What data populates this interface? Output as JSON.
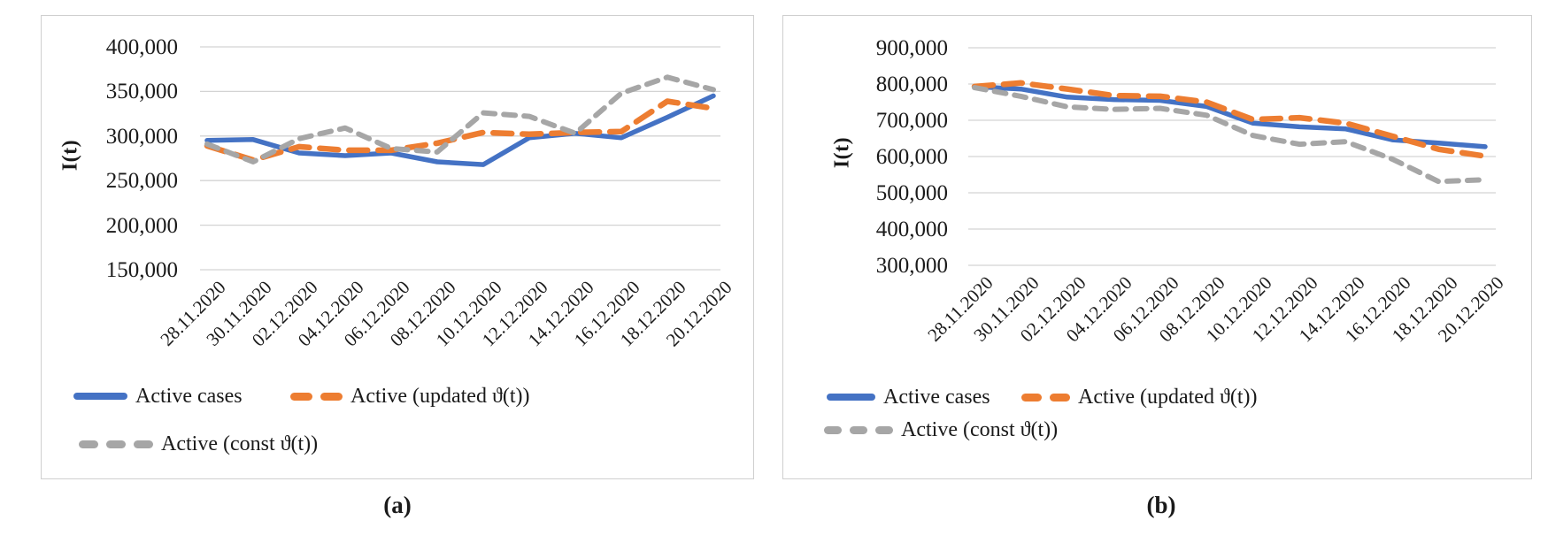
{
  "figure": {
    "captions": {
      "a": "(a)",
      "b": "(b)"
    }
  },
  "colors": {
    "active_cases": "#4472C4",
    "active_updated": "#ED7D31",
    "active_const": "#A6A6A6",
    "gridline": "#d3d3d3"
  },
  "chart_data": [
    {
      "id": "a",
      "type": "line",
      "title": "",
      "ylabel": "I(t)",
      "xlabel": "",
      "ylim": [
        150000,
        400000
      ],
      "ytick_step": 50000,
      "ytick_labels": [
        "400,000",
        "350,000",
        "300,000",
        "250,000",
        "200,000",
        "150,000"
      ],
      "grid": true,
      "legend_position": "bottom",
      "categories": [
        "28.11.2020",
        "30.11.2020",
        "02.12.2020",
        "04.12.2020",
        "06.12.2020",
        "08.12.2020",
        "10.12.2020",
        "12.12.2020",
        "14.12.2020",
        "16.12.2020",
        "18.12.2020",
        "20.12.2020"
      ],
      "series": [
        {
          "name": "Active cases",
          "color": "#4472C4",
          "dash": "solid",
          "values": [
            295000,
            296000,
            281000,
            278000,
            281000,
            271000,
            268000,
            298000,
            303000,
            298000,
            321000,
            345000
          ]
        },
        {
          "name": "Active (updated ϑ(t))",
          "color": "#ED7D31",
          "dash": "long",
          "values": [
            289000,
            273000,
            288000,
            284000,
            284000,
            292000,
            304000,
            302000,
            304000,
            305000,
            339000,
            331000
          ]
        },
        {
          "name": "Active (const ϑ(t))",
          "color": "#A6A6A6",
          "dash": "short",
          "values": [
            291000,
            271000,
            297000,
            309000,
            286000,
            282000,
            326000,
            322000,
            303000,
            348000,
            366000,
            352000
          ]
        }
      ]
    },
    {
      "id": "b",
      "type": "line",
      "title": "",
      "ylabel": "I(t)",
      "xlabel": "",
      "ylim": [
        300000,
        900000
      ],
      "ytick_step": 100000,
      "ytick_labels": [
        "900,000",
        "800,000",
        "700,000",
        "600,000",
        "500,000",
        "400,000",
        "300,000"
      ],
      "grid": true,
      "legend_position": "bottom",
      "categories": [
        "28.11.2020",
        "30.11.2020",
        "02.12.2020",
        "04.12.2020",
        "06.12.2020",
        "08.12.2020",
        "10.12.2020",
        "12.12.2020",
        "14.12.2020",
        "16.12.2020",
        "18.12.2020",
        "20.12.2020"
      ],
      "series": [
        {
          "name": "Active cases",
          "color": "#4472C4",
          "dash": "solid",
          "values": [
            793000,
            786000,
            764000,
            757000,
            755000,
            738000,
            692000,
            682000,
            676000,
            646000,
            637000,
            627000
          ]
        },
        {
          "name": "Active (updated ϑ(t))",
          "color": "#ED7D31",
          "dash": "long",
          "values": [
            793000,
            803000,
            786000,
            768000,
            766000,
            750000,
            702000,
            707000,
            692000,
            656000,
            620000,
            601000
          ]
        },
        {
          "name": "Active (const ϑ(t))",
          "color": "#A6A6A6",
          "dash": "short",
          "values": [
            790000,
            766000,
            737000,
            730000,
            733000,
            714000,
            658000,
            634000,
            641000,
            593000,
            531000,
            536000
          ]
        }
      ]
    }
  ]
}
